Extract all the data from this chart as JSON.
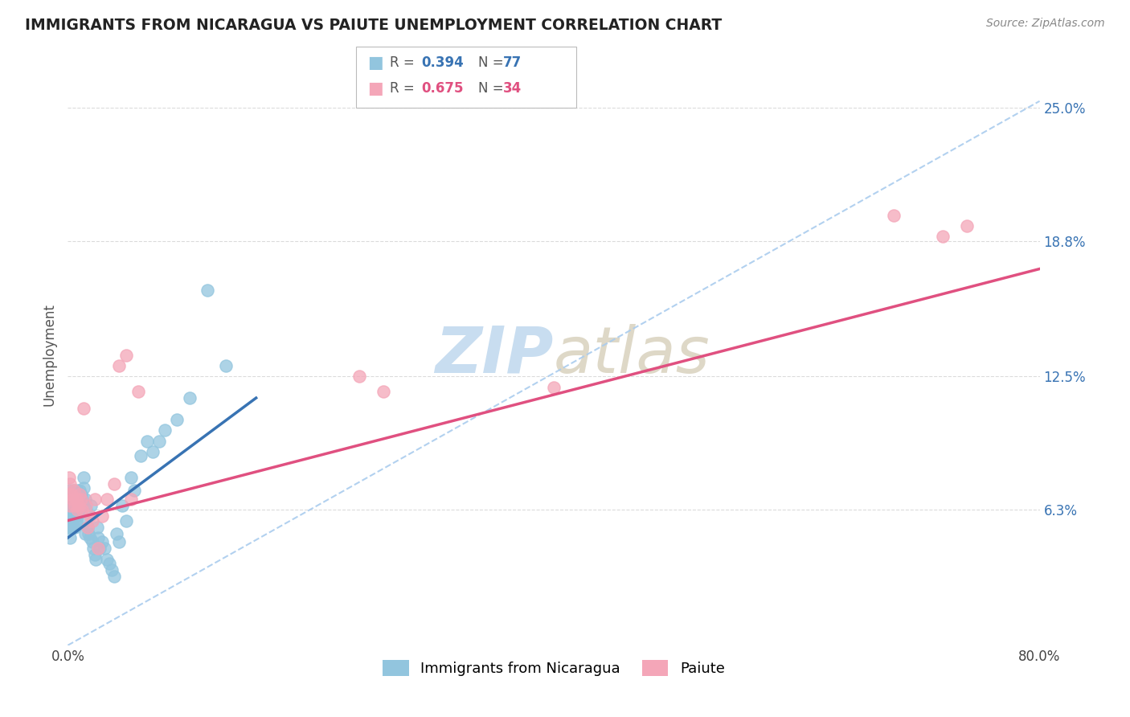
{
  "title": "IMMIGRANTS FROM NICARAGUA VS PAIUTE UNEMPLOYMENT CORRELATION CHART",
  "source": "Source: ZipAtlas.com",
  "ylabel": "Unemployment",
  "ytick_labels": [
    "6.3%",
    "12.5%",
    "18.8%",
    "25.0%"
  ],
  "ytick_values": [
    0.063,
    0.125,
    0.188,
    0.25
  ],
  "xlim": [
    0.0,
    0.8
  ],
  "ylim": [
    0.0,
    0.27
  ],
  "legend_r1": "0.394",
  "legend_n1": "77",
  "legend_r2": "0.675",
  "legend_n2": "34",
  "blue_color": "#92c5de",
  "pink_color": "#f4a6b8",
  "blue_line_color": "#3873b3",
  "pink_line_color": "#e05080",
  "dashed_line_color": "#aaccee",
  "background_color": "#ffffff",
  "watermark_color": "#c8ddf0",
  "blue_scatter_x": [
    0.001,
    0.001,
    0.001,
    0.001,
    0.002,
    0.002,
    0.002,
    0.002,
    0.002,
    0.003,
    0.003,
    0.003,
    0.003,
    0.004,
    0.004,
    0.004,
    0.005,
    0.005,
    0.005,
    0.005,
    0.006,
    0.006,
    0.006,
    0.006,
    0.007,
    0.007,
    0.007,
    0.008,
    0.008,
    0.008,
    0.009,
    0.009,
    0.01,
    0.01,
    0.01,
    0.011,
    0.011,
    0.012,
    0.012,
    0.013,
    0.013,
    0.014,
    0.014,
    0.015,
    0.015,
    0.016,
    0.017,
    0.018,
    0.019,
    0.02,
    0.021,
    0.022,
    0.023,
    0.024,
    0.025,
    0.026,
    0.028,
    0.03,
    0.032,
    0.034,
    0.036,
    0.038,
    0.04,
    0.042,
    0.045,
    0.048,
    0.052,
    0.055,
    0.06,
    0.065,
    0.07,
    0.075,
    0.08,
    0.09,
    0.1,
    0.115,
    0.13
  ],
  "blue_scatter_y": [
    0.068,
    0.063,
    0.058,
    0.055,
    0.072,
    0.065,
    0.06,
    0.055,
    0.05,
    0.07,
    0.065,
    0.06,
    0.055,
    0.068,
    0.063,
    0.058,
    0.072,
    0.065,
    0.06,
    0.055,
    0.07,
    0.065,
    0.06,
    0.055,
    0.068,
    0.063,
    0.058,
    0.072,
    0.065,
    0.06,
    0.068,
    0.063,
    0.072,
    0.067,
    0.062,
    0.07,
    0.065,
    0.068,
    0.063,
    0.078,
    0.073,
    0.068,
    0.052,
    0.063,
    0.058,
    0.055,
    0.052,
    0.05,
    0.065,
    0.048,
    0.045,
    0.042,
    0.04,
    0.055,
    0.05,
    0.045,
    0.048,
    0.045,
    0.04,
    0.038,
    0.035,
    0.032,
    0.052,
    0.048,
    0.065,
    0.058,
    0.078,
    0.072,
    0.088,
    0.095,
    0.09,
    0.095,
    0.1,
    0.105,
    0.115,
    0.165,
    0.13
  ],
  "pink_scatter_x": [
    0.001,
    0.001,
    0.002,
    0.002,
    0.003,
    0.004,
    0.005,
    0.006,
    0.007,
    0.008,
    0.009,
    0.01,
    0.011,
    0.012,
    0.013,
    0.015,
    0.016,
    0.018,
    0.02,
    0.022,
    0.025,
    0.028,
    0.032,
    0.038,
    0.042,
    0.048,
    0.052,
    0.058,
    0.24,
    0.26,
    0.4,
    0.68,
    0.72,
    0.74
  ],
  "pink_scatter_y": [
    0.078,
    0.07,
    0.075,
    0.065,
    0.07,
    0.068,
    0.072,
    0.065,
    0.068,
    0.063,
    0.065,
    0.07,
    0.068,
    0.063,
    0.11,
    0.065,
    0.055,
    0.06,
    0.058,
    0.068,
    0.045,
    0.06,
    0.068,
    0.075,
    0.13,
    0.135,
    0.068,
    0.118,
    0.125,
    0.118,
    0.12,
    0.2,
    0.19,
    0.195
  ],
  "blue_line_x": [
    0.0,
    0.155
  ],
  "blue_line_y_start": 0.05,
  "blue_line_y_end": 0.115,
  "pink_line_x": [
    0.0,
    0.8
  ],
  "pink_line_y_start": 0.058,
  "pink_line_y_end": 0.175
}
